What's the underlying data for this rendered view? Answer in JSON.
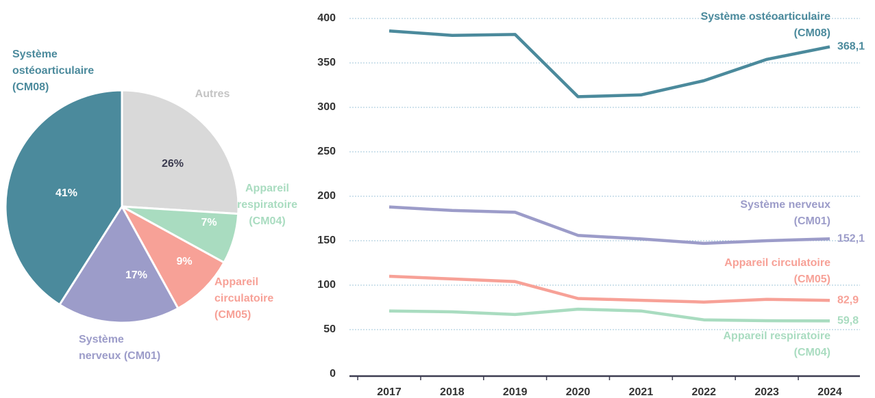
{
  "chart_data": [
    {
      "type": "pie",
      "categories": [
        "Autres",
        "Appareil\nrespiratoire\n(CM04)",
        "Appareil\ncirculatoire\n(CM05)",
        "Système\nnerveux (CM01)",
        "Système\nostéoarticulaire\n(CM08)"
      ],
      "values": [
        26,
        7,
        9,
        17,
        41
      ],
      "value_labels": [
        "26%",
        "7%",
        "9%",
        "17%",
        "41%"
      ],
      "colors": [
        "#d9d9d9",
        "#a9dcc0",
        "#f7a197",
        "#9c9cc9",
        "#4b8a9c"
      ]
    },
    {
      "type": "line",
      "categories": [
        "2017",
        "2018",
        "2019",
        "2020",
        "2021",
        "2022",
        "2023",
        "2024"
      ],
      "ylim": [
        0,
        400
      ],
      "yticks": [
        0,
        50,
        100,
        150,
        200,
        250,
        300,
        350,
        400
      ],
      "grid": true,
      "series": [
        {
          "name": "Système ostéoarticulaire\n(CM08)",
          "color": "#4b8a9c",
          "values": [
            386,
            381,
            382,
            312,
            314,
            330,
            354,
            368.1
          ],
          "value_labels": [
            null,
            null,
            null,
            null,
            null,
            null,
            null,
            "368,1"
          ]
        },
        {
          "name": "Système nerveux\n(CM01)",
          "color": "#9c9cc9",
          "values": [
            188,
            184,
            182,
            156,
            152,
            147,
            150,
            152.1
          ],
          "value_labels": [
            null,
            null,
            null,
            null,
            null,
            null,
            null,
            "152,1"
          ]
        },
        {
          "name": "Appareil circulatoire\n(CM05)",
          "color": "#f7a197",
          "values": [
            110,
            107,
            104,
            85,
            83,
            81,
            84,
            82.9
          ],
          "value_labels": [
            null,
            null,
            null,
            null,
            null,
            null,
            null,
            "82,9"
          ]
        },
        {
          "name": "Appareil respiratoire\n(CM04)",
          "color": "#a9dcc0",
          "values": [
            71,
            70,
            67,
            73,
            71,
            61,
            60,
            59.8
          ],
          "value_labels": [
            null,
            null,
            null,
            null,
            null,
            null,
            null,
            "59,8"
          ]
        }
      ]
    }
  ]
}
